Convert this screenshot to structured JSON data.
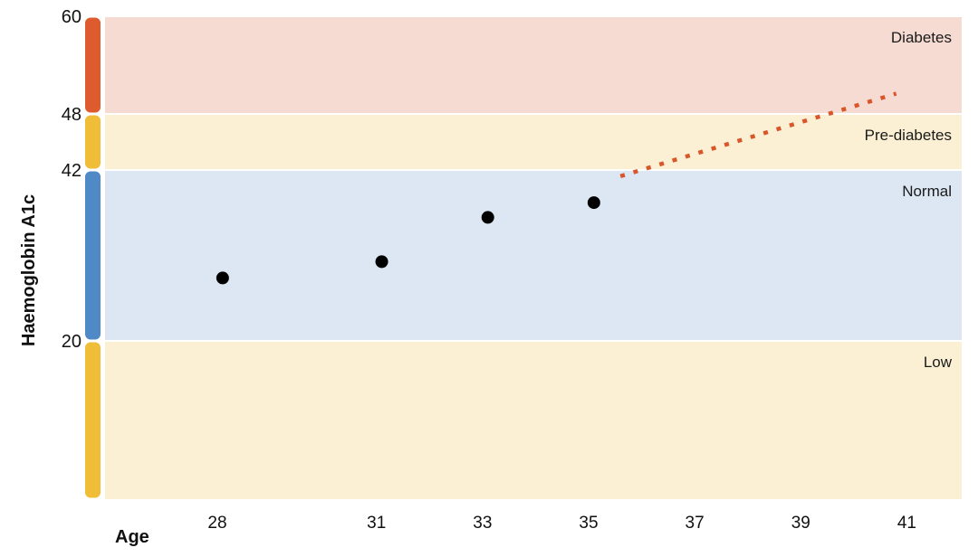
{
  "chart_data": {
    "type": "scatter",
    "xlabel": "Age",
    "ylabel": "Haemoglobin A1c",
    "x_ticks": [
      28,
      31,
      33,
      35,
      37,
      39,
      41
    ],
    "y_ticks": [
      60,
      48,
      42,
      20
    ],
    "points": [
      {
        "x": 28.1,
        "y": 28.1
      },
      {
        "x": 31.1,
        "y": 30.2
      },
      {
        "x": 33.1,
        "y": 35.9
      },
      {
        "x": 35.1,
        "y": 37.8
      }
    ],
    "projection": {
      "style": "dotted",
      "color": "#d9552a",
      "from": {
        "x": 35.6,
        "y": 41.2
      },
      "to": {
        "x": 40.8,
        "y": 50.5
      }
    },
    "bands": [
      {
        "label": "Diabetes",
        "from": 48,
        "to": 60,
        "fill": "#f6dbd3",
        "bar_color": "#dd5b2c"
      },
      {
        "label": "Pre-diabetes",
        "from": 42,
        "to": 48,
        "fill": "#fbf0d4",
        "bar_color": "#f0bd38"
      },
      {
        "label": "Normal",
        "from": 20,
        "to": 42,
        "fill": "#dce7f3",
        "bar_color": "#4f8ac6"
      },
      {
        "label": "Low",
        "from": 0,
        "to": 20,
        "fill": "#fbf0d4",
        "bar_color": "#f0bd38"
      }
    ],
    "point_color": "#000000"
  }
}
